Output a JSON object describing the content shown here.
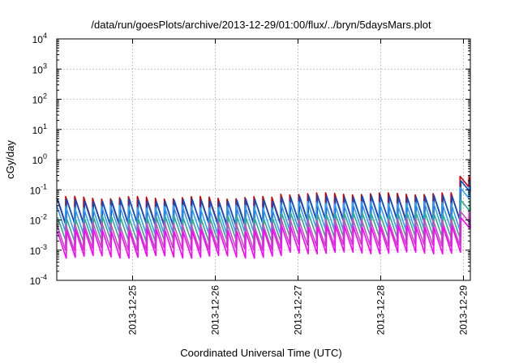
{
  "chart_data": {
    "type": "line",
    "title": "/data/run/goesPlots/archive/2013-12-29/01:00/flux/../bryn/5daysMars.plot",
    "xlabel": "Coordinated Universal Time (UTC)",
    "ylabel": "cGy/day",
    "x_range": [
      "2013-12-24 02:00",
      "2013-12-29 02:00"
    ],
    "x_ticks": [
      "2013-12-25",
      "2013-12-26",
      "2013-12-27",
      "2013-12-28",
      "2013-12-29"
    ],
    "y_scale": "log",
    "ylim": [
      0.0001,
      10000
    ],
    "y_ticks": [
      {
        "base": "10",
        "exp": "-4",
        "value": 0.0001
      },
      {
        "base": "10",
        "exp": "-3",
        "value": 0.001
      },
      {
        "base": "10",
        "exp": "-2",
        "value": 0.01
      },
      {
        "base": "10",
        "exp": "-1",
        "value": 0.1
      },
      {
        "base": "10",
        "exp": "0",
        "value": 1
      },
      {
        "base": "10",
        "exp": "1",
        "value": 10
      },
      {
        "base": "10",
        "exp": "2",
        "value": 100
      },
      {
        "base": "10",
        "exp": "3",
        "value": 1000
      },
      {
        "base": "10",
        "exp": "4",
        "value": 10000
      }
    ],
    "grid": true,
    "legend": "none",
    "pattern": {
      "description_note": "sawtooth; sharp rise then decay, repeating",
      "cycle_hours": 2.6,
      "late_rise_start": "2013-12-28 21:00"
    },
    "series": [
      {
        "color": "#cc0000",
        "peak": 0.055,
        "trough": 0.0075,
        "late_peak": 0.28
      },
      {
        "color": "#0050d0",
        "peak": 0.045,
        "trough": 0.006,
        "late_peak": 0.2
      },
      {
        "color": "#2aa0ff",
        "peak": 0.028,
        "trough": 0.0038,
        "late_peak": 0.12
      },
      {
        "color": "#2eaa8a",
        "peak": 0.012,
        "trough": 0.0018,
        "late_peak": 0.045
      },
      {
        "color": "#c050c0",
        "peak": 0.008,
        "trough": 0.0011,
        "late_peak": 0.02
      },
      {
        "color": "#ff00ff",
        "peak": 0.0045,
        "trough": 0.0006,
        "late_peak": 0.012
      }
    ]
  }
}
